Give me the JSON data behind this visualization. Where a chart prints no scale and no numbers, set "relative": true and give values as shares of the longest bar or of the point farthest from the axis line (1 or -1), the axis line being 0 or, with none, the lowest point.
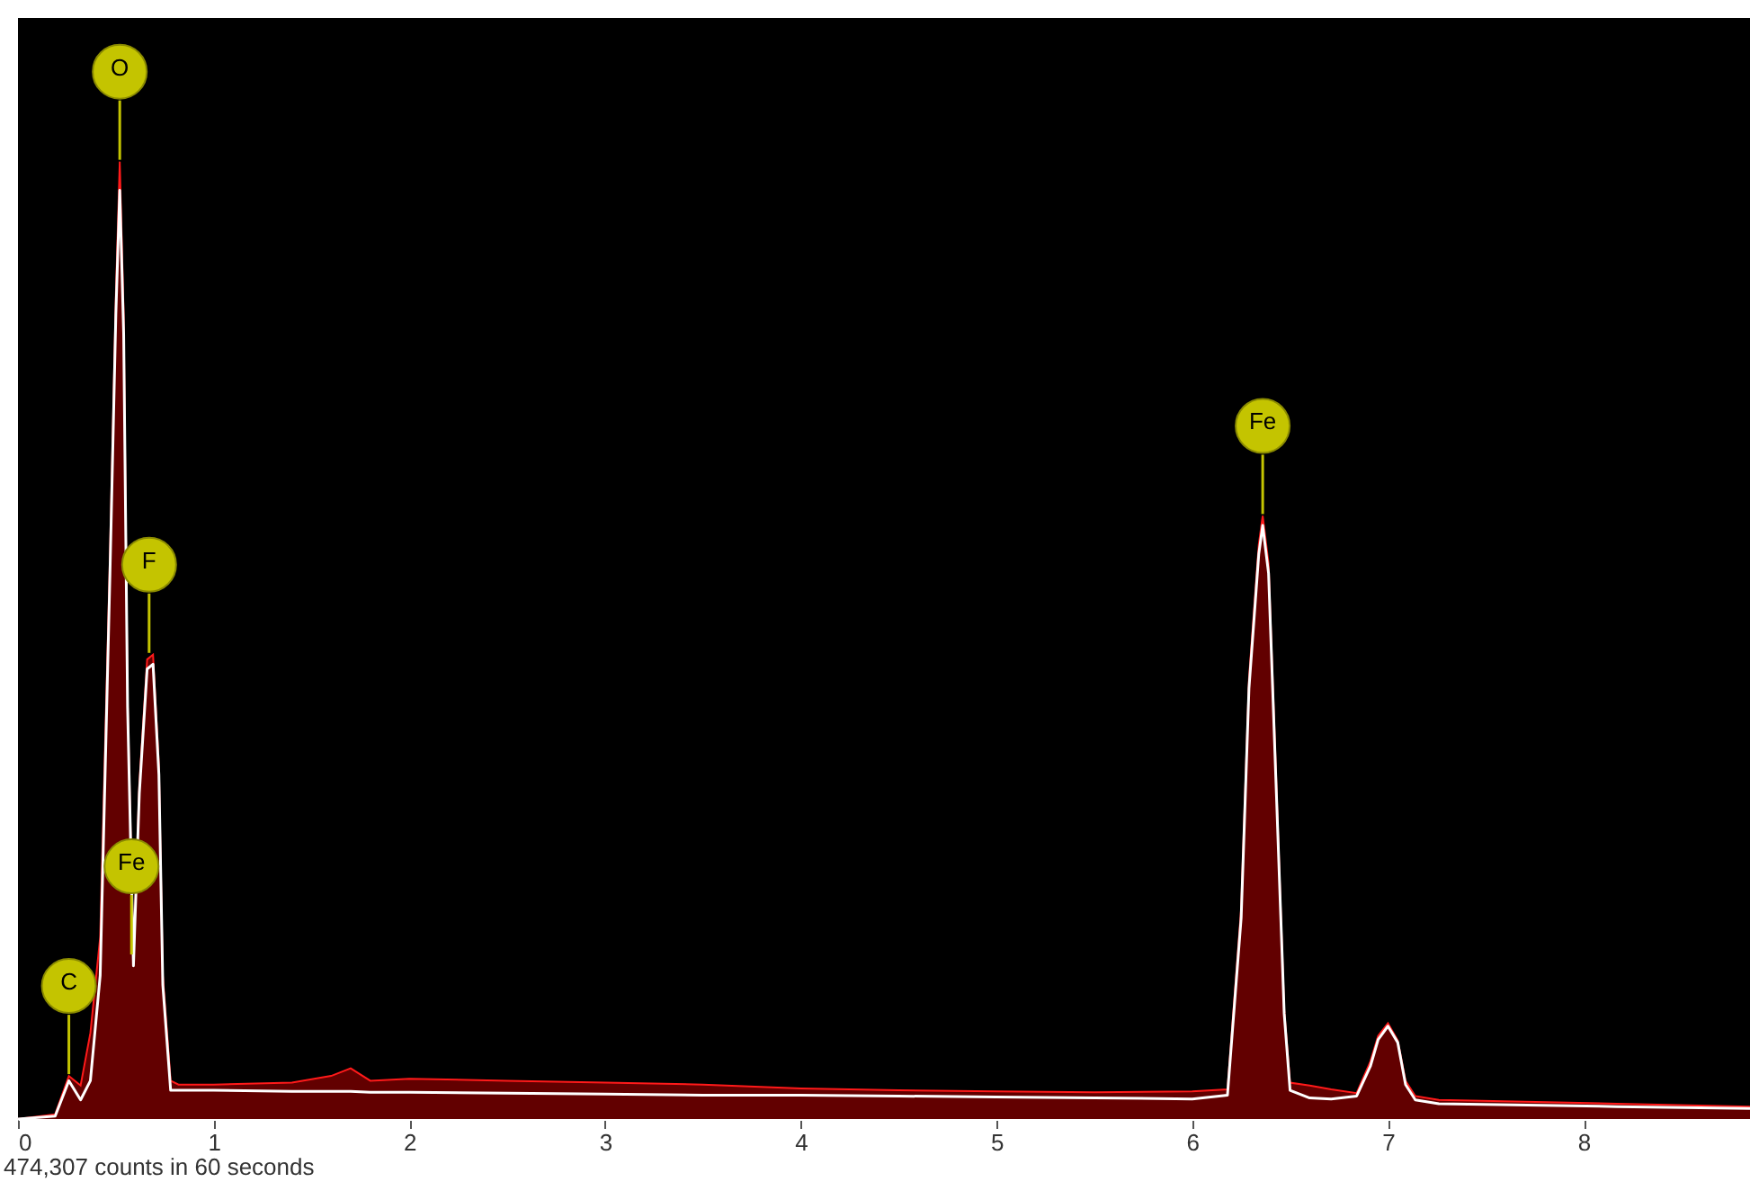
{
  "chart_data": {
    "type": "area",
    "relative": true,
    "x": [
      0,
      0.19,
      0.26,
      0.32,
      0.37,
      0.42,
      0.47,
      0.5,
      0.52,
      0.54,
      0.56,
      0.59,
      0.62,
      0.66,
      0.69,
      0.72,
      0.74,
      0.78,
      0.82,
      1.0,
      1.4,
      1.6,
      1.7,
      1.8,
      2.0,
      2.5,
      3.0,
      3.5,
      4.0,
      4.5,
      5.0,
      5.5,
      6.0,
      6.18,
      6.25,
      6.29,
      6.34,
      6.36,
      6.39,
      6.43,
      6.47,
      6.5,
      6.6,
      6.71,
      6.84,
      6.91,
      6.95,
      7.0,
      7.05,
      7.09,
      7.14,
      7.26,
      8.17,
      8.85
    ],
    "series": [
      {
        "type": "area",
        "color": "#8b0000",
        "values": [
          0,
          0.005,
          0.045,
          0.035,
          0.09,
          0.19,
          0.59,
          0.86,
          1.0,
          0.84,
          0.44,
          0.17,
          0.35,
          0.48,
          0.485,
          0.37,
          0.15,
          0.04,
          0.036,
          0.036,
          0.038,
          0.045,
          0.053,
          0.04,
          0.042,
          0.04,
          0.038,
          0.036,
          0.032,
          0.03,
          0.029,
          0.028,
          0.029,
          0.031,
          0.22,
          0.46,
          0.6,
          0.63,
          0.58,
          0.35,
          0.114,
          0.038,
          0.035,
          0.031,
          0.027,
          0.06,
          0.087,
          0.1,
          0.082,
          0.04,
          0.024,
          0.02,
          0.016,
          0.013
        ]
      },
      {
        "type": "line",
        "color": "#ffffff",
        "values": [
          0,
          0.003,
          0.04,
          0.02,
          0.04,
          0.15,
          0.57,
          0.84,
          0.97,
          0.82,
          0.43,
          0.16,
          0.34,
          0.47,
          0.475,
          0.36,
          0.14,
          0.03,
          0.03,
          0.03,
          0.029,
          0.029,
          0.029,
          0.028,
          0.028,
          0.027,
          0.026,
          0.025,
          0.025,
          0.024,
          0.023,
          0.022,
          0.021,
          0.025,
          0.21,
          0.45,
          0.59,
          0.62,
          0.57,
          0.34,
          0.11,
          0.03,
          0.022,
          0.021,
          0.024,
          0.055,
          0.083,
          0.097,
          0.08,
          0.036,
          0.02,
          0.016,
          0.013,
          0.011
        ]
      }
    ],
    "xlim": [
      0,
      8.85
    ],
    "xticks": [
      0,
      1,
      2,
      3,
      4,
      5,
      6,
      7,
      8
    ],
    "annotations": [
      {
        "text": "O",
        "x": 0.52,
        "y": 1.0
      },
      {
        "text": "F",
        "x": 0.67,
        "y": 0.485
      },
      {
        "text": "Fe",
        "x": 0.58,
        "y": 0.17
      },
      {
        "text": "C",
        "x": 0.26,
        "y": 0.045
      },
      {
        "text": "Fe",
        "x": 6.36,
        "y": 0.63
      },
      "474,307 counts in 60 seconds"
    ]
  }
}
